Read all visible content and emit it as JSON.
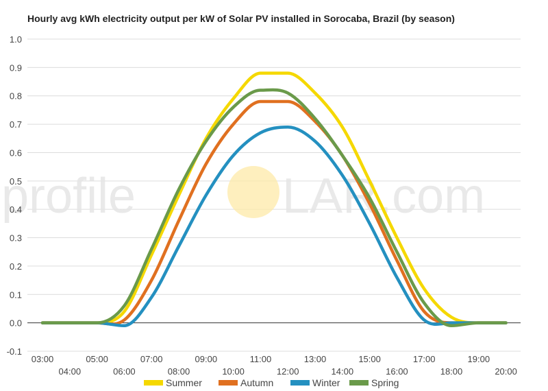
{
  "watermark": {
    "text_pre": "profile",
    "text_post": "LAR.com",
    "sun_color": "#fde9a8",
    "text_color": "#e6e6e6"
  },
  "chart_data": {
    "type": "line",
    "title": "Hourly avg kWh electricity output per kW of Solar PV installed in Sorocaba, Brazil (by season)",
    "xlabel": "",
    "ylabel": "",
    "ylim": [
      -0.1,
      1.0
    ],
    "yticks": [
      "1.0",
      "0.9",
      "0.8",
      "0.7",
      "0.6",
      "0.5",
      "0.4",
      "0.3",
      "0.2",
      "0.1",
      "0.0",
      "-0.1"
    ],
    "categories": [
      "03:00",
      "04:00",
      "05:00",
      "06:00",
      "07:00",
      "08:00",
      "09:00",
      "10:00",
      "11:00",
      "12:00",
      "13:00",
      "14:00",
      "15:00",
      "16:00",
      "17:00",
      "18:00",
      "19:00",
      "20:00"
    ],
    "grid": true,
    "legend_position": "bottom",
    "series": [
      {
        "name": "Summer",
        "color": "#f5d800",
        "values": [
          0,
          0,
          0,
          0.04,
          0.24,
          0.45,
          0.65,
          0.79,
          0.88,
          0.88,
          0.81,
          0.69,
          0.5,
          0.3,
          0.12,
          0.02,
          0,
          0
        ]
      },
      {
        "name": "Autumn",
        "color": "#e07020",
        "values": [
          0,
          0,
          0,
          0.01,
          0.15,
          0.36,
          0.56,
          0.7,
          0.78,
          0.78,
          0.71,
          0.59,
          0.42,
          0.22,
          0.04,
          0,
          0,
          0
        ]
      },
      {
        "name": "Winter",
        "color": "#2490c0",
        "values": [
          0,
          0,
          0,
          -0.01,
          0.09,
          0.27,
          0.45,
          0.59,
          0.67,
          0.69,
          0.64,
          0.52,
          0.35,
          0.16,
          0.01,
          0,
          0,
          0
        ]
      },
      {
        "name": "Spring",
        "color": "#6a9a4a",
        "values": [
          0,
          0,
          0,
          0.06,
          0.26,
          0.47,
          0.64,
          0.76,
          0.82,
          0.81,
          0.72,
          0.59,
          0.44,
          0.25,
          0.07,
          -0.01,
          0,
          0
        ]
      }
    ]
  }
}
